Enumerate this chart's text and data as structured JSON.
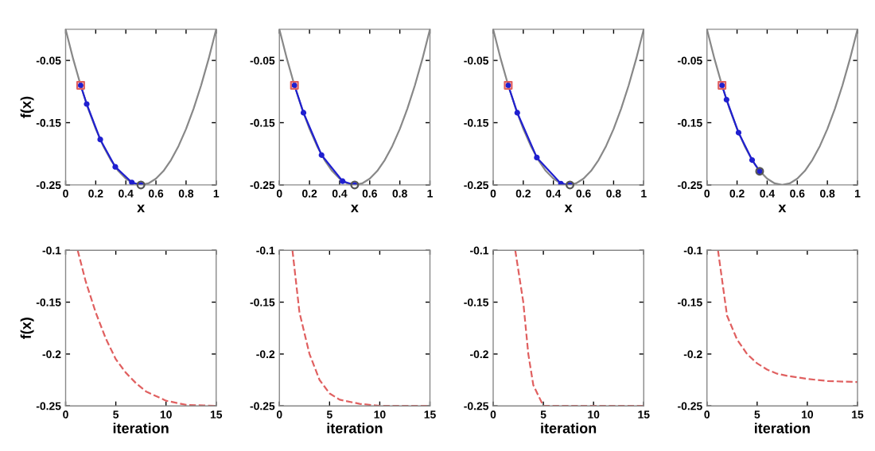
{
  "chart_data": [
    {
      "type": "line",
      "xlabel": "x",
      "ylabel": "f(x)",
      "xlim": [
        0,
        1
      ],
      "ylim": [
        -0.25,
        0
      ],
      "xticks": [
        0,
        0.2,
        0.4,
        0.6,
        0.8,
        1
      ],
      "yticks": [
        -0.25,
        -0.15,
        -0.05
      ],
      "grid": false,
      "legend": false,
      "series": [
        {
          "type": "line",
          "color": "#888888",
          "x": [
            0,
            0.05,
            0.1,
            0.15,
            0.2,
            0.25,
            0.3,
            0.35,
            0.4,
            0.45,
            0.5,
            0.55,
            0.6,
            0.65,
            0.7,
            0.75,
            0.8,
            0.85,
            0.9,
            0.95,
            1
          ],
          "values": [
            0,
            -0.0475,
            -0.09,
            -0.1275,
            -0.16,
            -0.1875,
            -0.21,
            -0.2275,
            -0.24,
            -0.2475,
            -0.25,
            -0.2475,
            -0.24,
            -0.2275,
            -0.21,
            -0.1875,
            -0.16,
            -0.1275,
            -0.09,
            -0.0475,
            0
          ],
          "marker": "none"
        },
        {
          "type": "line",
          "color": "#2020d0",
          "x": [
            0.1,
            0.14,
            0.23,
            0.33,
            0.44,
            0.5
          ],
          "values": [
            -0.09,
            -0.12,
            -0.177,
            -0.221,
            -0.246,
            -0.25
          ],
          "marker": "circle"
        },
        {
          "type": "scatter",
          "color": "#e06060",
          "x": [
            0.1
          ],
          "values": [
            -0.09
          ],
          "marker": "square"
        },
        {
          "type": "scatter",
          "color": "#555555",
          "x": [
            0.5
          ],
          "values": [
            -0.25
          ],
          "marker": "circle"
        }
      ]
    },
    {
      "type": "line",
      "xlabel": "x",
      "xlim": [
        0,
        1
      ],
      "ylim": [
        -0.25,
        0
      ],
      "xticks": [
        0,
        0.2,
        0.4,
        0.6,
        0.8,
        1
      ],
      "yticks": [
        -0.25,
        -0.15,
        -0.05
      ],
      "grid": false,
      "legend": false,
      "series": [
        {
          "type": "line",
          "color": "#888888",
          "x": [
            0,
            0.05,
            0.1,
            0.15,
            0.2,
            0.25,
            0.3,
            0.35,
            0.4,
            0.45,
            0.5,
            0.55,
            0.6,
            0.65,
            0.7,
            0.75,
            0.8,
            0.85,
            0.9,
            0.95,
            1
          ],
          "values": [
            0,
            -0.0475,
            -0.09,
            -0.1275,
            -0.16,
            -0.1875,
            -0.21,
            -0.2275,
            -0.24,
            -0.2475,
            -0.25,
            -0.2475,
            -0.24,
            -0.2275,
            -0.21,
            -0.1875,
            -0.16,
            -0.1275,
            -0.09,
            -0.0475,
            0
          ],
          "marker": "none"
        },
        {
          "type": "line",
          "color": "#2020d0",
          "x": [
            0.1,
            0.16,
            0.28,
            0.42,
            0.5
          ],
          "values": [
            -0.09,
            -0.134,
            -0.202,
            -0.244,
            -0.25
          ],
          "marker": "circle"
        },
        {
          "type": "scatter",
          "color": "#e06060",
          "x": [
            0.1
          ],
          "values": [
            -0.09
          ],
          "marker": "square"
        },
        {
          "type": "scatter",
          "color": "#555555",
          "x": [
            0.5
          ],
          "values": [
            -0.25
          ],
          "marker": "circle"
        }
      ]
    },
    {
      "type": "line",
      "xlabel": "x",
      "xlim": [
        0,
        1
      ],
      "ylim": [
        -0.25,
        0
      ],
      "xticks": [
        0,
        0.2,
        0.4,
        0.6,
        0.8,
        1
      ],
      "yticks": [
        -0.25,
        -0.15,
        -0.05
      ],
      "grid": false,
      "legend": false,
      "series": [
        {
          "type": "line",
          "color": "#888888",
          "x": [
            0,
            0.05,
            0.1,
            0.15,
            0.2,
            0.25,
            0.3,
            0.35,
            0.4,
            0.45,
            0.5,
            0.55,
            0.6,
            0.65,
            0.7,
            0.75,
            0.8,
            0.85,
            0.9,
            0.95,
            1
          ],
          "values": [
            0,
            -0.0475,
            -0.09,
            -0.1275,
            -0.16,
            -0.1875,
            -0.21,
            -0.2275,
            -0.24,
            -0.2475,
            -0.25,
            -0.2475,
            -0.24,
            -0.2275,
            -0.21,
            -0.1875,
            -0.16,
            -0.1275,
            -0.09,
            -0.0475,
            0
          ],
          "marker": "none"
        },
        {
          "type": "line",
          "color": "#2020d0",
          "x": [
            0.1,
            0.16,
            0.29,
            0.45,
            0.51
          ],
          "values": [
            -0.09,
            -0.134,
            -0.206,
            -0.248,
            -0.25
          ],
          "marker": "circle"
        },
        {
          "type": "scatter",
          "color": "#e06060",
          "x": [
            0.1
          ],
          "values": [
            -0.09
          ],
          "marker": "square"
        },
        {
          "type": "scatter",
          "color": "#555555",
          "x": [
            0.51
          ],
          "values": [
            -0.25
          ],
          "marker": "circle"
        }
      ]
    },
    {
      "type": "line",
      "xlabel": "x",
      "xlim": [
        0,
        1
      ],
      "ylim": [
        -0.25,
        0
      ],
      "xticks": [
        0,
        0.2,
        0.4,
        0.6,
        0.8,
        1
      ],
      "yticks": [
        -0.25,
        -0.15,
        -0.05
      ],
      "grid": false,
      "legend": false,
      "series": [
        {
          "type": "line",
          "color": "#888888",
          "x": [
            0,
            0.05,
            0.1,
            0.15,
            0.2,
            0.25,
            0.3,
            0.35,
            0.4,
            0.45,
            0.5,
            0.55,
            0.6,
            0.65,
            0.7,
            0.75,
            0.8,
            0.85,
            0.9,
            0.95,
            1
          ],
          "values": [
            0,
            -0.0475,
            -0.09,
            -0.1275,
            -0.16,
            -0.1875,
            -0.21,
            -0.2275,
            -0.24,
            -0.2475,
            -0.25,
            -0.2475,
            -0.24,
            -0.2275,
            -0.21,
            -0.1875,
            -0.16,
            -0.1275,
            -0.09,
            -0.0475,
            0
          ],
          "marker": "none"
        },
        {
          "type": "line",
          "color": "#2020d0",
          "x": [
            0.1,
            0.13,
            0.21,
            0.3,
            0.35
          ],
          "values": [
            -0.09,
            -0.113,
            -0.166,
            -0.21,
            -0.228
          ],
          "marker": "circle"
        },
        {
          "type": "scatter",
          "color": "#e06060",
          "x": [
            0.1
          ],
          "values": [
            -0.09
          ],
          "marker": "square"
        },
        {
          "type": "scatter",
          "color": "#555555",
          "x": [
            0.35
          ],
          "values": [
            -0.228
          ],
          "marker": "circle"
        }
      ]
    },
    {
      "type": "line",
      "xlabel": "iteration",
      "ylabel": "f(x)",
      "xlim": [
        0,
        15
      ],
      "ylim": [
        -0.25,
        -0.1
      ],
      "xticks": [
        0,
        5,
        10,
        15
      ],
      "yticks": [
        -0.25,
        -0.2,
        -0.15,
        -0.1
      ],
      "grid": false,
      "legend": false,
      "series": [
        {
          "color": "#e06060",
          "line_style": "dashed",
          "marker": "none",
          "x": [
            1.2,
            2,
            3,
            4,
            5,
            6,
            7,
            8,
            10,
            12,
            15
          ],
          "values": [
            -0.1,
            -0.13,
            -0.16,
            -0.185,
            -0.205,
            -0.218,
            -0.228,
            -0.236,
            -0.245,
            -0.249,
            -0.25
          ]
        }
      ]
    },
    {
      "type": "line",
      "xlabel": "iteration",
      "xlim": [
        0,
        15
      ],
      "ylim": [
        -0.25,
        -0.1
      ],
      "xticks": [
        0,
        5,
        10,
        15
      ],
      "yticks": [
        -0.25,
        -0.2,
        -0.15,
        -0.1
      ],
      "grid": false,
      "legend": false,
      "series": [
        {
          "type": "line",
          "color": "#e06060",
          "line_style": "dashed",
          "marker": "none",
          "x": [
            1.3,
            2,
            3,
            4,
            5,
            6,
            8,
            10,
            15
          ],
          "values": [
            -0.1,
            -0.16,
            -0.2,
            -0.225,
            -0.238,
            -0.244,
            -0.248,
            -0.25,
            -0.25
          ]
        }
      ]
    },
    {
      "type": "line",
      "xlabel": "iteration",
      "xlim": [
        0,
        15
      ],
      "ylim": [
        -0.25,
        -0.1
      ],
      "xticks": [
        0,
        5,
        10,
        15
      ],
      "yticks": [
        -0.25,
        -0.2,
        -0.15,
        -0.1
      ],
      "grid": false,
      "legend": false,
      "series": [
        {
          "type": "line",
          "color": "#e06060",
          "line_style": "dashed",
          "marker": "none",
          "x": [
            2.2,
            3,
            3.5,
            4,
            5,
            15
          ],
          "values": [
            -0.1,
            -0.15,
            -0.2,
            -0.23,
            -0.25,
            -0.25
          ]
        }
      ]
    },
    {
      "type": "line",
      "xlabel": "iteration",
      "xlim": [
        0,
        15
      ],
      "ylim": [
        -0.25,
        -0.1
      ],
      "xticks": [
        0,
        5,
        10,
        15
      ],
      "yticks": [
        -0.25,
        -0.2,
        -0.15,
        -0.1
      ],
      "grid": false,
      "legend": false,
      "series": [
        {
          "type": "line",
          "color": "#e06060",
          "line_style": "dashed",
          "marker": "none",
          "x": [
            1.1,
            2,
            3,
            4,
            5,
            6,
            7,
            8,
            10,
            12,
            15
          ],
          "values": [
            -0.1,
            -0.163,
            -0.186,
            -0.2,
            -0.209,
            -0.215,
            -0.219,
            -0.221,
            -0.224,
            -0.226,
            -0.227
          ]
        }
      ]
    }
  ]
}
